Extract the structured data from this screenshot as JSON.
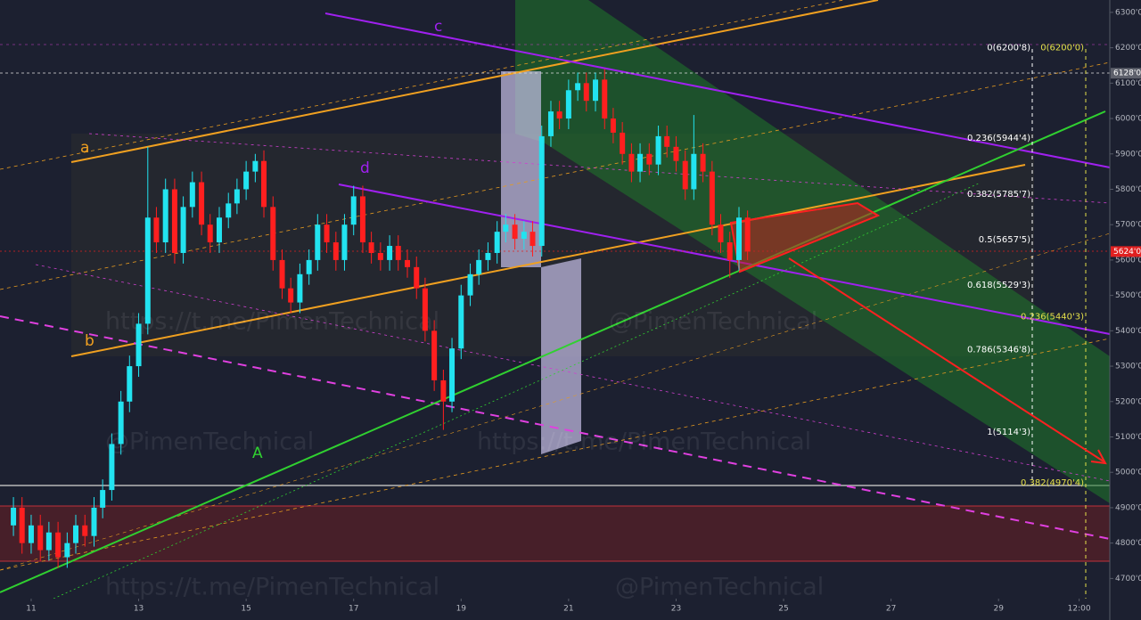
{
  "chart_data": {
    "type": "candlestick",
    "up_color": "#22e3f0",
    "down_color": "#ff1f1f",
    "xlim": [
      10.42,
      31.07
    ],
    "ylim": [
      4643,
      6335
    ],
    "xticks": [
      11,
      13,
      15,
      17,
      19,
      21,
      23,
      25,
      27,
      29,
      {
        "value": 30.5,
        "label": "12:00"
      }
    ],
    "yticks": [
      {
        "value": 4700,
        "label": "4700'0"
      },
      {
        "value": 4800,
        "label": "4800'0"
      },
      {
        "value": 4900,
        "label": "4900'0"
      },
      {
        "value": 5000,
        "label": "5000'0"
      },
      {
        "value": 5100,
        "label": "5100'0"
      },
      {
        "value": 5200,
        "label": "5200'0"
      },
      {
        "value": 5300,
        "label": "5300'0"
      },
      {
        "value": 5400,
        "label": "5400'0"
      },
      {
        "value": 5500,
        "label": "5500'0"
      },
      {
        "value": 5600,
        "label": "5600'0"
      },
      {
        "value": 5700,
        "label": "5700'0"
      },
      {
        "value": 5800,
        "label": "5800'0"
      },
      {
        "value": 5900,
        "label": "5900'0"
      },
      {
        "value": 6000,
        "label": "6000'0"
      },
      {
        "value": 6100,
        "label": "6100'0"
      },
      {
        "value": 6200,
        "label": "6200'0"
      },
      {
        "value": 6300,
        "label": "6300'0"
      }
    ],
    "x": [
      10.67,
      10.83,
      11,
      11.17,
      11.33,
      11.5,
      11.67,
      11.83,
      12,
      12.17,
      12.33,
      12.5,
      12.67,
      12.83,
      13,
      13.17,
      13.33,
      13.5,
      13.67,
      13.83,
      14,
      14.17,
      14.33,
      14.5,
      14.67,
      14.83,
      15,
      15.17,
      15.33,
      15.5,
      15.67,
      15.83,
      16,
      16.17,
      16.33,
      16.5,
      16.67,
      16.83,
      17,
      17.17,
      17.33,
      17.5,
      17.67,
      17.83,
      18,
      18.17,
      18.33,
      18.5,
      18.67,
      18.83,
      19,
      19.17,
      19.33,
      19.5,
      19.67,
      19.83,
      20,
      20.17,
      20.33,
      20.5,
      20.67,
      20.83,
      21,
      21.17,
      21.33,
      21.5,
      21.67,
      21.83,
      22,
      22.17,
      22.33,
      22.5,
      22.67,
      22.83,
      23,
      23.17,
      23.33,
      23.5,
      23.67,
      23.83,
      24,
      24.17,
      24.33
    ],
    "open": [
      4850,
      4900,
      4800,
      4850,
      4780,
      4830,
      4760,
      4800,
      4850,
      4820,
      4900,
      4950,
      5080,
      5200,
      5300,
      5420,
      5720,
      5650,
      5800,
      5620,
      5750,
      5820,
      5700,
      5650,
      5720,
      5760,
      5800,
      5850,
      5880,
      5750,
      5600,
      5520,
      5480,
      5560,
      5600,
      5700,
      5650,
      5600,
      5700,
      5780,
      5650,
      5620,
      5600,
      5640,
      5600,
      5580,
      5520,
      5400,
      5260,
      5200,
      5350,
      5500,
      5560,
      5600,
      5620,
      5680,
      5700,
      5660,
      5680,
      5640,
      5950,
      6020,
      6000,
      6080,
      6100,
      6050,
      6110,
      6000,
      5960,
      5900,
      5850,
      5900,
      5870,
      5950,
      5920,
      5880,
      5800,
      5900,
      5850,
      5700,
      5650,
      5600,
      5720
    ],
    "high": [
      4930,
      4930,
      4880,
      4880,
      4860,
      4860,
      4830,
      4880,
      4880,
      4930,
      4980,
      5110,
      5230,
      5330,
      5450,
      5920,
      5750,
      5830,
      5830,
      5780,
      5850,
      5850,
      5730,
      5750,
      5790,
      5830,
      5880,
      5900,
      5910,
      5780,
      5630,
      5550,
      5590,
      5630,
      5730,
      5730,
      5680,
      5730,
      5810,
      5810,
      5680,
      5650,
      5670,
      5670,
      5630,
      5610,
      5550,
      5430,
      5290,
      5380,
      5530,
      5590,
      5630,
      5650,
      5710,
      5730,
      5730,
      5710,
      5710,
      5980,
      6050,
      6050,
      6110,
      6130,
      6130,
      6130,
      6140,
      6030,
      5990,
      5930,
      5930,
      5930,
      5980,
      5980,
      5950,
      5910,
      6010,
      5930,
      5880,
      5730,
      5680,
      5750,
      5740
    ],
    "low": [
      4820,
      4770,
      4770,
      4750,
      4750,
      4730,
      4730,
      4770,
      4790,
      4790,
      4870,
      4920,
      5050,
      5170,
      5270,
      5390,
      5620,
      5620,
      5590,
      5590,
      5720,
      5670,
      5620,
      5620,
      5690,
      5730,
      5770,
      5820,
      5720,
      5570,
      5490,
      5450,
      5450,
      5530,
      5570,
      5620,
      5570,
      5570,
      5670,
      5620,
      5590,
      5570,
      5570,
      5570,
      5550,
      5490,
      5370,
      5230,
      5120,
      5170,
      5320,
      5470,
      5530,
      5570,
      5590,
      5650,
      5630,
      5630,
      5610,
      5610,
      5920,
      5970,
      5970,
      6050,
      6020,
      6020,
      5970,
      5930,
      5870,
      5820,
      5820,
      5840,
      5840,
      5890,
      5850,
      5770,
      5770,
      5820,
      5670,
      5620,
      5550,
      5570,
      5600
    ],
    "close": [
      4900,
      4800,
      4850,
      4780,
      4830,
      4760,
      4800,
      4850,
      4820,
      4900,
      4950,
      5080,
      5200,
      5300,
      5420,
      5720,
      5650,
      5800,
      5620,
      5750,
      5820,
      5700,
      5650,
      5720,
      5760,
      5800,
      5850,
      5880,
      5750,
      5600,
      5520,
      5480,
      5560,
      5600,
      5700,
      5650,
      5600,
      5700,
      5780,
      5650,
      5620,
      5600,
      5640,
      5600,
      5580,
      5520,
      5400,
      5260,
      5200,
      5350,
      5500,
      5560,
      5600,
      5620,
      5680,
      5700,
      5660,
      5680,
      5640,
      5950,
      6020,
      6000,
      6080,
      6100,
      6050,
      6110,
      6000,
      5960,
      5900,
      5850,
      5900,
      5870,
      5950,
      5920,
      5880,
      5800,
      5900,
      5850,
      5700,
      5650,
      5600,
      5720,
      5624
    ],
    "current_price": {
      "value": 5624,
      "label": "5624'0"
    },
    "level_line": {
      "value": 6128,
      "label": "6128'0"
    },
    "fib_left": [
      {
        "value": 6200.8,
        "label": "0(6200'8)"
      },
      {
        "value": 5944.4,
        "label": "0.236(5944'4)"
      },
      {
        "value": 5785.7,
        "label": "0.382(5785'7)"
      },
      {
        "value": 5657.5,
        "label": "0.5(5657'5)"
      },
      {
        "value": 5529.3,
        "label": "0.618(5529'3)"
      },
      {
        "value": 5346.8,
        "label": "0.786(5346'8)"
      },
      {
        "value": 5114.3,
        "label": "1(5114'3)"
      }
    ],
    "fib_right": [
      {
        "value": 6200.0,
        "label": "0(6200'0)"
      },
      {
        "value": 5440.3,
        "label": "0.236(5440'3)"
      },
      {
        "value": 4970.4,
        "label": "0.382(4970'4)"
      }
    ],
    "annotations": [
      "a",
      "b",
      "c",
      "d",
      "A"
    ],
    "watermarks": [
      "https://t.me/PimenTechnical",
      "@PimenTechnical",
      "@PimenTechnical",
      "https://t.me/PimenTechnical",
      "https://t.me/PimenTechnical",
      "@PimenTechnical"
    ]
  }
}
